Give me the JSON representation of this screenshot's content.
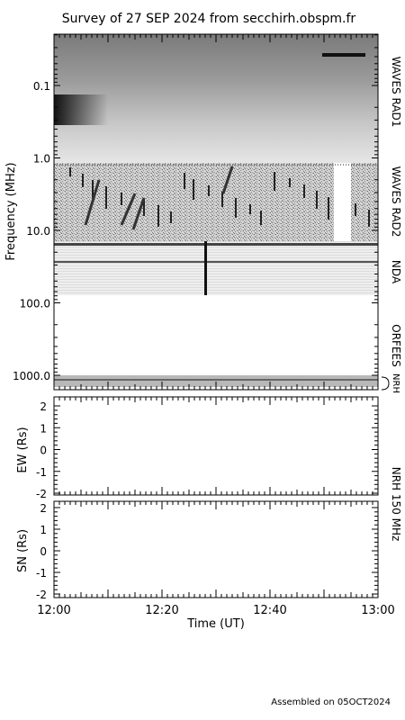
{
  "chart_data": [
    {
      "type": "heatmap",
      "title": "Survey of 27 SEP 2024 from secchirh.obspm.fr",
      "ylabel": "Frequency (MHz)",
      "yscale": "log",
      "ylim": [
        0.02,
        1300
      ],
      "y_ticks": [
        0.1,
        1.0,
        10.0,
        100.0,
        1000.0
      ],
      "y_tick_labels": [
        "0.1",
        "1.0",
        "10.0",
        "100.0",
        "1000.0"
      ],
      "xlim": [
        "12:00",
        "13:00"
      ],
      "colormap": "grayscale",
      "panels": [
        {
          "name": "WAVES RAD1",
          "freq_range": [
            0.02,
            1.0
          ]
        },
        {
          "name": "WAVES RAD2",
          "freq_range": [
            1.0,
            10.0
          ]
        },
        {
          "name": "NDA",
          "freq_range": [
            10.0,
            80.0
          ]
        },
        {
          "name": "ORFEES",
          "freq_range": [
            140.0,
            1000.0
          ]
        },
        {
          "name": "NRH",
          "freq_range": [
            1000.0,
            1300.0
          ]
        }
      ]
    },
    {
      "type": "line",
      "panel": "NRH 150 MHz",
      "ylabel": "EW (Rs)",
      "ylim": [
        -2,
        2
      ],
      "y_ticks": [
        -2,
        -1,
        0,
        1,
        2
      ],
      "y_tick_labels": [
        "-2",
        "-1",
        "0",
        "1",
        "2"
      ],
      "xlim": [
        "12:00",
        "13:00"
      ],
      "series": []
    },
    {
      "type": "line",
      "panel": "NRH 150 MHz",
      "ylabel": "SN (Rs)",
      "xlabel": "Time (UT)",
      "ylim": [
        -2,
        2
      ],
      "y_ticks": [
        -2,
        -1,
        0,
        1,
        2
      ],
      "y_tick_labels": [
        "-2",
        "-1",
        "0",
        "1",
        "2"
      ],
      "x_ticks": [
        "12:00",
        "12:20",
        "12:40",
        "13:00"
      ],
      "xlim": [
        "12:00",
        "13:00"
      ],
      "series": []
    }
  ],
  "footer": "Assembled on 05OCT2024",
  "right_label_nrh": "NRH 150 MHz"
}
